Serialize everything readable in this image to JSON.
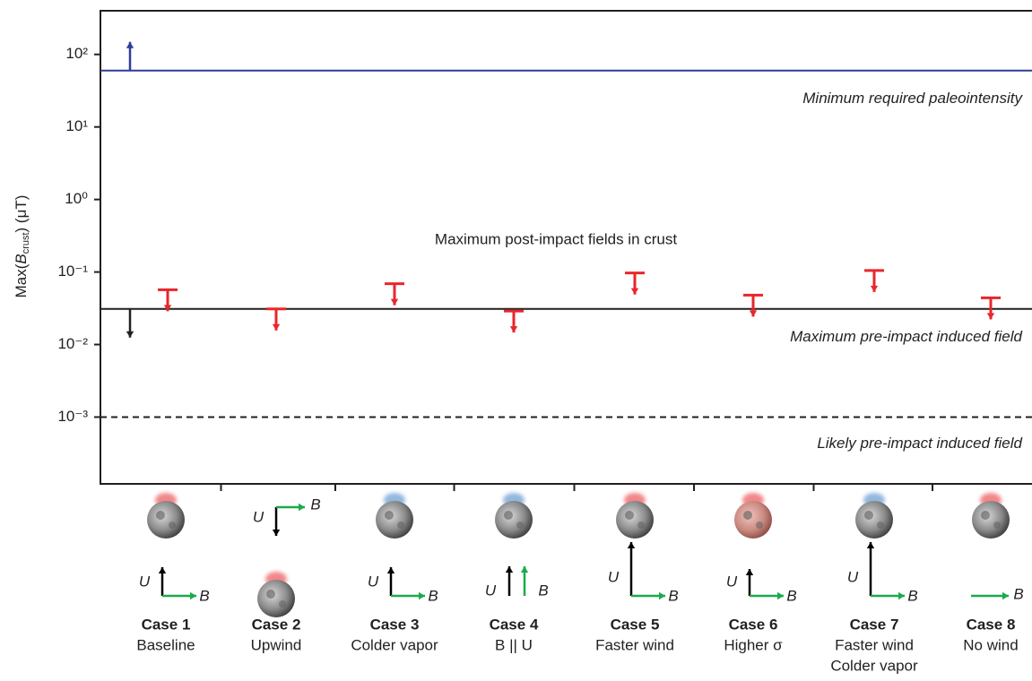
{
  "chart_data": {
    "type": "upper_limits",
    "ylabel": {
      "prefix": "Max(",
      "symbol": "B",
      "subscript": "crust",
      "suffix": ") (μT)"
    },
    "log_scale": true,
    "ylim": [
      0.00012,
      400
    ],
    "yticks": [
      {
        "value": 0.001,
        "label": "10⁻³"
      },
      {
        "value": 0.01,
        "label": "10⁻²"
      },
      {
        "value": 0.1,
        "label": "10⁻¹"
      },
      {
        "value": 1,
        "label": "10⁰"
      },
      {
        "value": 10,
        "label": "10¹"
      },
      {
        "value": 100,
        "label": "10²"
      }
    ],
    "categories": [
      "Case 1",
      "Case 2",
      "Case 3",
      "Case 4",
      "Case 5",
      "Case 6",
      "Case 7",
      "Case 8"
    ],
    "subtitles": [
      [
        "Baseline"
      ],
      [
        "Upwind"
      ],
      [
        "Colder vapor"
      ],
      [
        "B || U"
      ],
      [
        "Faster wind"
      ],
      [
        "Higher σ"
      ],
      [
        "Faster wind",
        "Colder vapor"
      ],
      [
        "No wind"
      ]
    ],
    "series": [
      {
        "name": "Maximum post-impact fields in crust",
        "color": "#e8262b",
        "values": [
          0.057,
          0.031,
          0.069,
          0.029,
          0.097,
          0.048,
          0.105,
          0.044
        ]
      }
    ],
    "reference_lines": [
      {
        "label": "Minimum required paleointensity",
        "value": 60,
        "color": "#2e3d98",
        "style": "solid",
        "arrow": "up"
      },
      {
        "label": "Maximum pre-impact induced field",
        "value": 0.031,
        "color": "#231f20",
        "style": "solid",
        "arrow": "down"
      },
      {
        "label": "Likely pre-impact induced field",
        "value": 0.001,
        "color": "#231f20",
        "style": "dashed"
      }
    ],
    "glow_colors": [
      "#e8262b",
      "#e8262b",
      "#3b7fc4",
      "#3b7fc4",
      "#e8262b",
      "#e8262b",
      "#3b7fc4",
      "#e8262b"
    ],
    "vector_labels": {
      "velocity": "U",
      "field": "B"
    }
  }
}
